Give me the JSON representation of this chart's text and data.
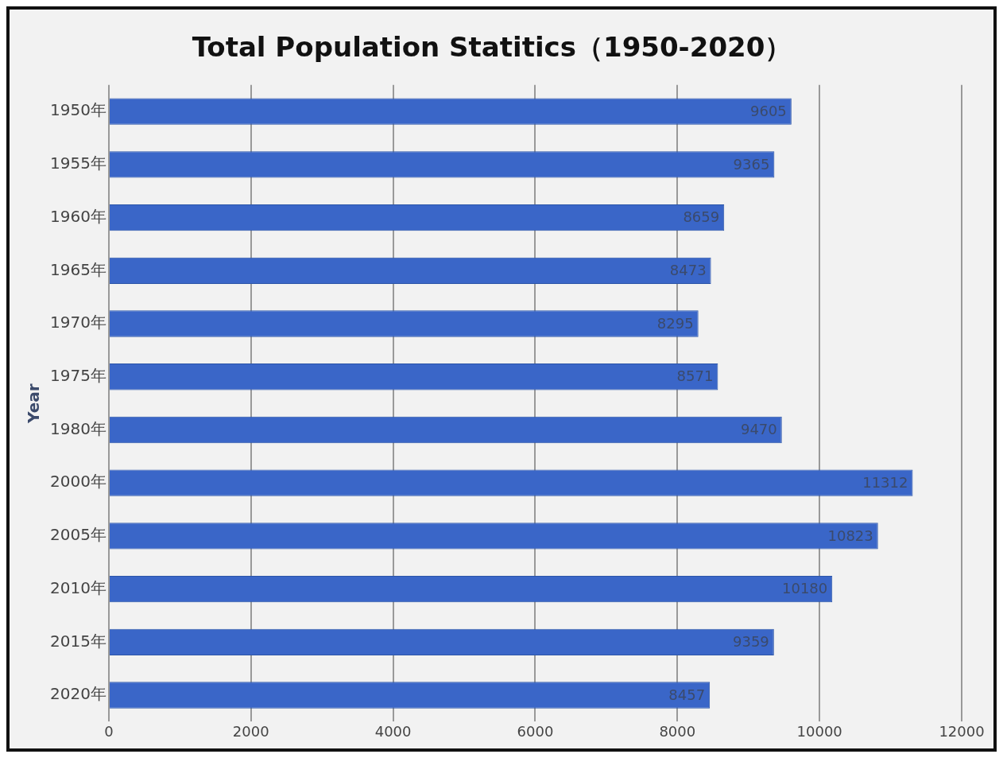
{
  "chart_data": {
    "type": "bar",
    "orientation": "horizontal",
    "title": "Total Population Statitics（1950-2020）",
    "ylabel": "Year",
    "categories": [
      "1950年",
      "1955年",
      "1960年",
      "1965年",
      "1970年",
      "1975年",
      "1980年",
      "2000年",
      "2005年",
      "2010年",
      "2015年",
      "2020年"
    ],
    "values": [
      9605,
      9365,
      8659,
      8473,
      8295,
      8571,
      9470,
      11312,
      10823,
      10180,
      9359,
      8457
    ],
    "color": "#3a66c8",
    "xlim": [
      0,
      12000
    ],
    "xticks": [
      0,
      2000,
      4000,
      6000,
      8000,
      10000,
      12000
    ],
    "grid": "x",
    "data_labels": true,
    "legend": false
  }
}
